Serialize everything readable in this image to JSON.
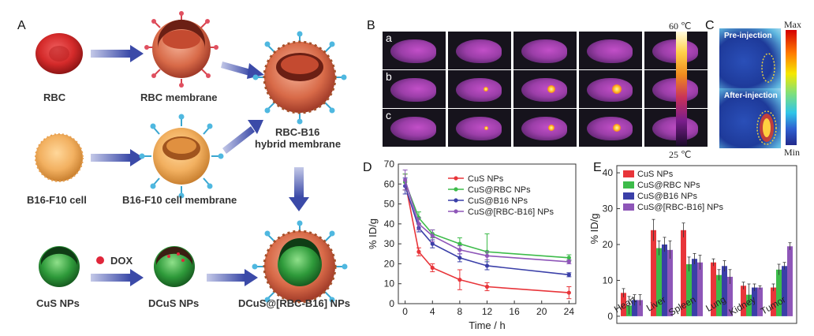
{
  "panels": {
    "a": "A",
    "b": "B",
    "c": "C",
    "d": "D",
    "e": "E"
  },
  "schematic": {
    "rbc": "RBC",
    "rbc_membrane": "RBC membrane",
    "hybrid_line1": "RBC-B16",
    "hybrid_line2": "hybrid membrane",
    "b16_cell": "B16-F10 cell",
    "b16_membrane": "B16-F10 cell membrane",
    "dox": "DOX",
    "cus": "CuS NPs",
    "dcus": "DCuS NPs",
    "final": "DCuS@[RBC-B16] NPs"
  },
  "panel_b": {
    "rows": [
      "a",
      "b",
      "c"
    ],
    "scale_max": "60 ℃",
    "scale_min": "25 ℃",
    "colors": {
      "cold": "#1a0b2a",
      "mid": "#9b3ea8",
      "hot": "#ffd24a"
    }
  },
  "panel_c": {
    "pre": "Pre-injection",
    "post": "After-injection",
    "max": "Max",
    "min": "Min"
  },
  "chart_data": [
    {
      "type": "line",
      "xlabel": "Time / h",
      "ylabel": "% ID/g",
      "x": [
        0,
        2,
        4,
        8,
        12,
        24
      ],
      "xticks": [
        0,
        4,
        8,
        12,
        16,
        20,
        24
      ],
      "yticks": [
        0,
        10,
        20,
        30,
        40,
        50,
        60,
        70
      ],
      "xlim": [
        -1,
        25
      ],
      "ylim": [
        0,
        70
      ],
      "series": [
        {
          "name": "CuS NPs",
          "color": "#e8353a",
          "values": [
            61,
            26,
            18,
            12,
            8.5,
            5.5
          ],
          "err": [
            4,
            2,
            2,
            5,
            2,
            3
          ]
        },
        {
          "name": "CuS@RBC NPs",
          "color": "#3dbb4a",
          "values": [
            61,
            43,
            35,
            30,
            26,
            23
          ],
          "err": [
            4,
            3,
            2,
            3,
            9,
            1.5
          ]
        },
        {
          "name": "CuS@B16 NPs",
          "color": "#3a3fa8",
          "values": [
            59,
            38,
            30,
            23,
            19,
            14.5
          ],
          "err": [
            4,
            2,
            2,
            2,
            2,
            1
          ]
        },
        {
          "name": "CuS@[RBC-B16] NPs",
          "color": "#8e56b8",
          "values": [
            62,
            40,
            34,
            27,
            24,
            21
          ],
          "err": [
            5,
            3,
            3,
            2,
            2,
            1
          ]
        }
      ]
    },
    {
      "type": "bar",
      "ylabel": "% ID/g",
      "categories": [
        "Heart",
        "Liver",
        "Spleen",
        "Lung",
        "Kidney",
        "Tumor"
      ],
      "yticks": [
        0,
        10,
        20,
        30,
        40
      ],
      "ylim": [
        -2,
        42
      ],
      "series": [
        {
          "name": "CuS NPs",
          "color": "#e8353a",
          "values": [
            6.5,
            24,
            24,
            15,
            8.5,
            8
          ],
          "err": [
            1.2,
            3,
            2,
            1,
            1,
            1
          ]
        },
        {
          "name": "CuS@RBC NPs",
          "color": "#3dbb4a",
          "values": [
            3,
            19,
            14.5,
            11.5,
            6,
            13
          ],
          "err": [
            2.5,
            2,
            2,
            1.5,
            3,
            1.5
          ]
        },
        {
          "name": "CuS@B16 NPs",
          "color": "#3a3fa8",
          "values": [
            4.5,
            20,
            16,
            14,
            8,
            14
          ],
          "err": [
            1.5,
            2,
            1.5,
            1.5,
            1,
            1
          ]
        },
        {
          "name": "CuS@[RBC-B16] NPs",
          "color": "#8e56b8",
          "values": [
            4.5,
            18.5,
            15,
            11,
            8,
            19.5
          ],
          "err": [
            1.5,
            2.5,
            2,
            2,
            0.5,
            1
          ]
        }
      ]
    }
  ]
}
